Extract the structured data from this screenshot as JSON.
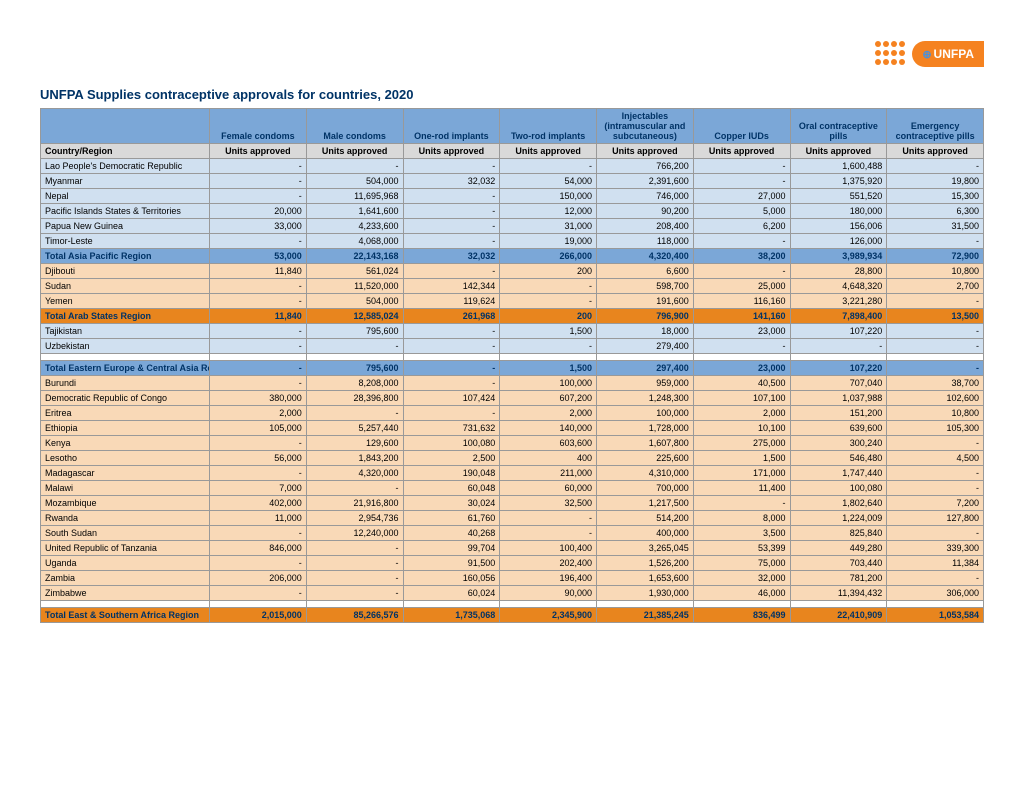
{
  "logo_text": "UNFPA",
  "title": "UNFPA Supplies contraceptive approvals for countries, 2020",
  "columns_top": [
    "Female condoms",
    "Male condoms",
    "One-rod implants",
    "Two-rod implants",
    "Injectables (intramuscular and subcutaneous)",
    "Copper IUDs",
    "Oral contraceptive pills",
    "Emergency contraceptive pills"
  ],
  "country_header": "Country/Region",
  "units_label": "Units approved",
  "rows": [
    {
      "style": "blue",
      "label": "Lao People's Democratic Republic",
      "cells": [
        "-",
        "-",
        "-",
        "-",
        "766,200",
        "-",
        "1,600,488",
        "-"
      ]
    },
    {
      "style": "blue",
      "label": "Myanmar",
      "cells": [
        "-",
        "504,000",
        "32,032",
        "54,000",
        "2,391,600",
        "-",
        "1,375,920",
        "19,800"
      ]
    },
    {
      "style": "blue",
      "label": "Nepal",
      "cells": [
        "-",
        "11,695,968",
        "-",
        "150,000",
        "746,000",
        "27,000",
        "551,520",
        "15,300"
      ]
    },
    {
      "style": "blue",
      "label": "Pacific Islands States & Territories",
      "cells": [
        "20,000",
        "1,641,600",
        "-",
        "12,000",
        "90,200",
        "5,000",
        "180,000",
        "6,300"
      ]
    },
    {
      "style": "blue",
      "label": "Papua New Guinea",
      "cells": [
        "33,000",
        "4,233,600",
        "-",
        "31,000",
        "208,400",
        "6,200",
        "156,006",
        "31,500"
      ]
    },
    {
      "style": "blue",
      "label": "Timor-Leste",
      "cells": [
        "-",
        "4,068,000",
        "-",
        "19,000",
        "118,000",
        "-",
        "126,000",
        "-"
      ]
    },
    {
      "style": "total-blue",
      "label": "Total Asia Pacific Region",
      "cells": [
        "53,000",
        "22,143,168",
        "32,032",
        "266,000",
        "4,320,400",
        "38,200",
        "3,989,934",
        "72,900"
      ]
    },
    {
      "style": "orange",
      "label": "Djibouti",
      "cells": [
        "11,840",
        "561,024",
        "-",
        "200",
        "6,600",
        "-",
        "28,800",
        "10,800"
      ]
    },
    {
      "style": "orange",
      "label": "Sudan",
      "cells": [
        "-",
        "11,520,000",
        "142,344",
        "-",
        "598,700",
        "25,000",
        "4,648,320",
        "2,700"
      ]
    },
    {
      "style": "orange",
      "label": "Yemen",
      "cells": [
        "-",
        "504,000",
        "119,624",
        "-",
        "191,600",
        "116,160",
        "3,221,280",
        "-"
      ]
    },
    {
      "style": "total-orange",
      "label": "Total Arab States Region",
      "cells": [
        "11,840",
        "12,585,024",
        "261,968",
        "200",
        "796,900",
        "141,160",
        "7,898,400",
        "13,500"
      ]
    },
    {
      "style": "blue",
      "label": "Tajikistan",
      "cells": [
        "-",
        "795,600",
        "-",
        "1,500",
        "18,000",
        "23,000",
        "107,220",
        "-"
      ]
    },
    {
      "style": "blue",
      "label": "Uzbekistan",
      "cells": [
        "-",
        "-",
        "-",
        "-",
        "279,400",
        "-",
        "-",
        "-"
      ]
    },
    {
      "style": "spacer",
      "label": "",
      "cells": [
        "",
        "",
        "",
        "",
        "",
        "",
        "",
        ""
      ]
    },
    {
      "style": "total-blue",
      "label": "Total Eastern Europe & Central Asia Region",
      "cells": [
        "-",
        "795,600",
        "-",
        "1,500",
        "297,400",
        "23,000",
        "107,220",
        "-"
      ]
    },
    {
      "style": "orange",
      "label": "Burundi",
      "cells": [
        "-",
        "8,208,000",
        "-",
        "100,000",
        "959,000",
        "40,500",
        "707,040",
        "38,700"
      ]
    },
    {
      "style": "orange",
      "label": "Democratic Republic of Congo",
      "cells": [
        "380,000",
        "28,396,800",
        "107,424",
        "607,200",
        "1,248,300",
        "107,100",
        "1,037,988",
        "102,600"
      ]
    },
    {
      "style": "orange",
      "label": "Eritrea",
      "cells": [
        "2,000",
        "-",
        "-",
        "2,000",
        "100,000",
        "2,000",
        "151,200",
        "10,800"
      ]
    },
    {
      "style": "orange",
      "label": "Ethiopia",
      "cells": [
        "105,000",
        "5,257,440",
        "731,632",
        "140,000",
        "1,728,000",
        "10,100",
        "639,600",
        "105,300"
      ]
    },
    {
      "style": "orange",
      "label": "Kenya",
      "cells": [
        "-",
        "129,600",
        "100,080",
        "603,600",
        "1,607,800",
        "275,000",
        "300,240",
        "-"
      ]
    },
    {
      "style": "orange",
      "label": "Lesotho",
      "cells": [
        "56,000",
        "1,843,200",
        "2,500",
        "400",
        "225,600",
        "1,500",
        "546,480",
        "4,500"
      ]
    },
    {
      "style": "orange",
      "label": "Madagascar",
      "cells": [
        "-",
        "4,320,000",
        "190,048",
        "211,000",
        "4,310,000",
        "171,000",
        "1,747,440",
        "-"
      ]
    },
    {
      "style": "orange",
      "label": "Malawi",
      "cells": [
        "7,000",
        "-",
        "60,048",
        "60,000",
        "700,000",
        "11,400",
        "100,080",
        "-"
      ]
    },
    {
      "style": "orange",
      "label": "Mozambique",
      "cells": [
        "402,000",
        "21,916,800",
        "30,024",
        "32,500",
        "1,217,500",
        "-",
        "1,802,640",
        "7,200"
      ]
    },
    {
      "style": "orange",
      "label": "Rwanda",
      "cells": [
        "11,000",
        "2,954,736",
        "61,760",
        "-",
        "514,200",
        "8,000",
        "1,224,009",
        "127,800"
      ]
    },
    {
      "style": "orange",
      "label": "South Sudan",
      "cells": [
        "-",
        "12,240,000",
        "40,268",
        "-",
        "400,000",
        "3,500",
        "825,840",
        "-"
      ]
    },
    {
      "style": "orange",
      "label": "United Republic of Tanzania",
      "cells": [
        "846,000",
        "-",
        "99,704",
        "100,400",
        "3,265,045",
        "53,399",
        "449,280",
        "339,300"
      ]
    },
    {
      "style": "orange",
      "label": "Uganda",
      "cells": [
        "-",
        "-",
        "91,500",
        "202,400",
        "1,526,200",
        "75,000",
        "703,440",
        "11,384"
      ]
    },
    {
      "style": "orange",
      "label": "Zambia",
      "cells": [
        "206,000",
        "-",
        "160,056",
        "196,400",
        "1,653,600",
        "32,000",
        "781,200",
        "-"
      ]
    },
    {
      "style": "orange",
      "label": "Zimbabwe",
      "cells": [
        "-",
        "-",
        "60,024",
        "90,000",
        "1,930,000",
        "46,000",
        "11,394,432",
        "306,000"
      ]
    },
    {
      "style": "spacer",
      "label": "",
      "cells": [
        "",
        "",
        "",
        "",
        "",
        "",
        "",
        ""
      ]
    },
    {
      "style": "total-orange",
      "label": "Total East & Southern Africa Region",
      "cells": [
        "2,015,000",
        "85,266,576",
        "1,735,068",
        "2,345,900",
        "21,385,245",
        "836,499",
        "22,410,909",
        "1,053,584"
      ]
    }
  ],
  "colors": {
    "header_blue": "#7ba7d7",
    "header_grey": "#d9d9d9",
    "row_blue": "#d0e0f0",
    "row_orange": "#f9d9b7",
    "total_orange": "#e8851e",
    "logo_orange": "#f58220",
    "title_navy": "#003366"
  }
}
